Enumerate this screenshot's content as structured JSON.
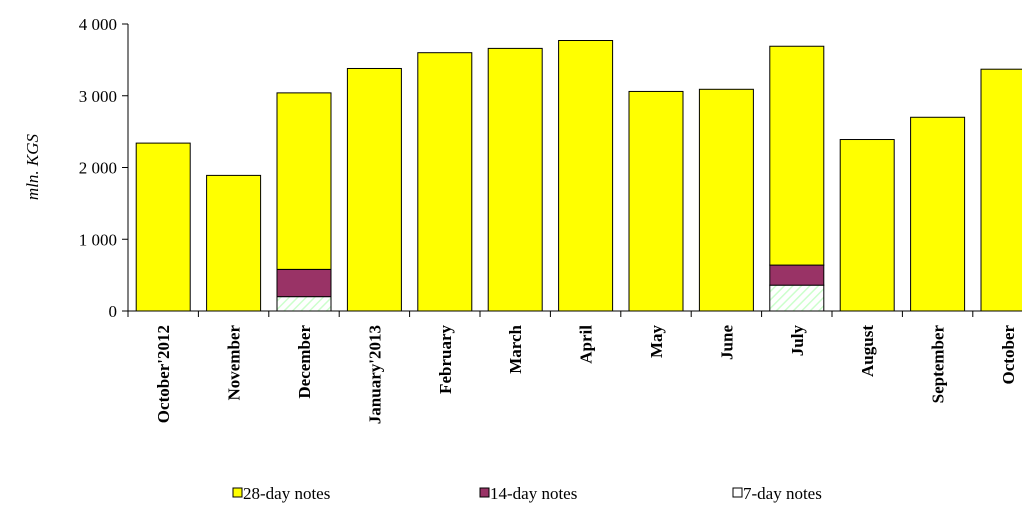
{
  "chart_data": {
    "type": "bar",
    "stacked": true,
    "ylabel": "mln. KGS",
    "ylim": [
      0,
      4000
    ],
    "yticks": [
      0,
      1000,
      2000,
      3000,
      4000
    ],
    "ytick_labels": [
      "0",
      "1 000",
      "2 000",
      "3 000",
      "4 000"
    ],
    "categories": [
      "October'2012",
      "November",
      "December",
      "January'2013",
      "February",
      "March",
      "April",
      "May",
      "June",
      "July",
      "August",
      "September",
      "October"
    ],
    "series": [
      {
        "name": "7-day notes",
        "color": "#ffffff",
        "values": [
          0,
          0,
          200,
          0,
          0,
          0,
          0,
          0,
          0,
          360,
          0,
          0,
          0
        ]
      },
      {
        "name": "14-day notes",
        "color": "#993366",
        "values": [
          0,
          0,
          380,
          0,
          0,
          0,
          0,
          0,
          0,
          280,
          0,
          0,
          0
        ]
      },
      {
        "name": "28-day notes",
        "color": "#ffff00",
        "values": [
          2340,
          1890,
          2460,
          3380,
          3600,
          3660,
          3770,
          3060,
          3090,
          3050,
          2390,
          2700,
          3370
        ]
      }
    ],
    "legend": {
      "placement": "bottom",
      "order": [
        "28-day notes",
        "14-day notes",
        "7-day notes"
      ]
    },
    "grid": false
  }
}
